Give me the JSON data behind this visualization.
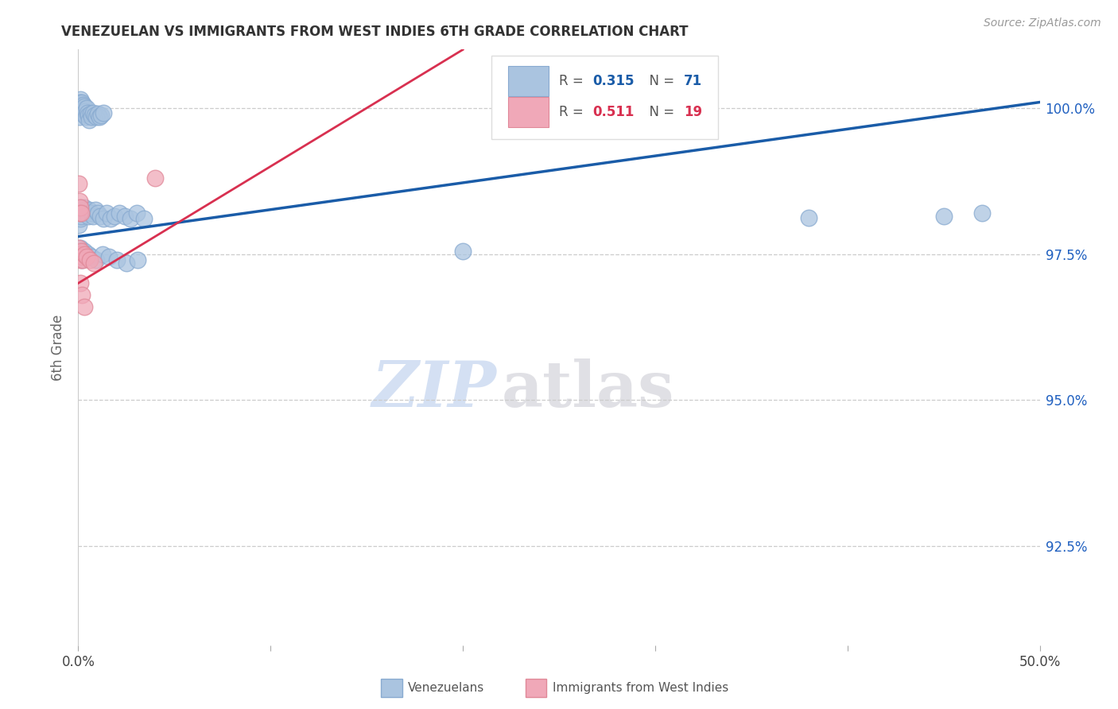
{
  "title": "VENEZUELAN VS IMMIGRANTS FROM WEST INDIES 6TH GRADE CORRELATION CHART",
  "source": "Source: ZipAtlas.com",
  "ylabel": "6th Grade",
  "xlim": [
    0.0,
    0.5
  ],
  "ylim": [
    0.908,
    1.01
  ],
  "yticks": [
    0.925,
    0.95,
    0.975,
    1.0
  ],
  "yticklabels": [
    "92.5%",
    "95.0%",
    "97.5%",
    "100.0%"
  ],
  "xtick_positions": [
    0.0,
    0.1,
    0.2,
    0.3,
    0.4,
    0.5
  ],
  "blue_R": 0.315,
  "blue_N": 71,
  "pink_R": 0.511,
  "pink_N": 19,
  "blue_color": "#aac4e0",
  "pink_color": "#f0a8b8",
  "blue_edge_color": "#88aad0",
  "pink_edge_color": "#e08898",
  "blue_line_color": "#1a5ca8",
  "pink_line_color": "#d83050",
  "legend_blue_label": "Venezuelans",
  "legend_pink_label": "Immigrants from West Indies",
  "blue_line_x0": 0.0,
  "blue_line_y0": 0.978,
  "blue_line_x1": 0.5,
  "blue_line_y1": 1.001,
  "pink_line_x0": 0.0,
  "pink_line_y0": 0.97,
  "pink_line_x1": 0.2,
  "pink_line_y1": 1.01,
  "blue_pts_x": [
    0.0003,
    0.0005,
    0.0006,
    0.0008,
    0.001,
    0.0012,
    0.0014,
    0.0016,
    0.0018,
    0.002,
    0.0022,
    0.0025,
    0.0028,
    0.003,
    0.0033,
    0.0036,
    0.004,
    0.0044,
    0.0048,
    0.0053,
    0.0058,
    0.0063,
    0.007,
    0.0077,
    0.0085,
    0.0093,
    0.01,
    0.011,
    0.012,
    0.013,
    0.0003,
    0.0006,
    0.0009,
    0.0012,
    0.0016,
    0.002,
    0.0025,
    0.003,
    0.0036,
    0.0042,
    0.005,
    0.0058,
    0.0067,
    0.0077,
    0.0088,
    0.01,
    0.0115,
    0.013,
    0.0148,
    0.0168,
    0.019,
    0.0215,
    0.0242,
    0.0272,
    0.0305,
    0.034,
    0.001,
    0.002,
    0.003,
    0.005,
    0.007,
    0.0095,
    0.0125,
    0.016,
    0.02,
    0.025,
    0.031,
    0.2,
    0.38,
    0.45,
    0.47
  ],
  "blue_pts_y": [
    0.9995,
    0.9985,
    1.0005,
    1.001,
    1.0015,
    1.001,
    1.0,
    1.0005,
    0.9995,
    1.001,
    1.0,
    0.999,
    1.0005,
    0.9998,
    1.0002,
    0.9995,
    0.9985,
    1.0,
    0.9992,
    0.9988,
    0.998,
    0.999,
    0.9985,
    0.9992,
    0.9988,
    0.9985,
    0.999,
    0.9985,
    0.9988,
    0.9992,
    0.98,
    0.982,
    0.981,
    0.983,
    0.9815,
    0.9825,
    0.982,
    0.983,
    0.9825,
    0.982,
    0.9815,
    0.9825,
    0.982,
    0.9815,
    0.9825,
    0.982,
    0.9815,
    0.981,
    0.982,
    0.981,
    0.9815,
    0.982,
    0.9815,
    0.981,
    0.982,
    0.981,
    0.976,
    0.974,
    0.9755,
    0.975,
    0.9745,
    0.974,
    0.975,
    0.9745,
    0.974,
    0.9735,
    0.974,
    0.9755,
    0.9812,
    0.9815,
    0.982
  ],
  "pink_pts_x": [
    0.0003,
    0.0006,
    0.0008,
    0.001,
    0.0013,
    0.0003,
    0.0006,
    0.0009,
    0.0013,
    0.0018,
    0.0025,
    0.0033,
    0.0045,
    0.006,
    0.008,
    0.0012,
    0.002,
    0.003,
    0.04
  ],
  "pink_pts_y": [
    0.987,
    0.984,
    0.982,
    0.983,
    0.982,
    0.976,
    0.975,
    0.974,
    0.9755,
    0.9745,
    0.974,
    0.975,
    0.9745,
    0.974,
    0.9735,
    0.97,
    0.968,
    0.966,
    0.988
  ],
  "watermark_zip": "ZIP",
  "watermark_atlas": "atlas",
  "background_color": "#ffffff",
  "grid_color": "#cccccc"
}
